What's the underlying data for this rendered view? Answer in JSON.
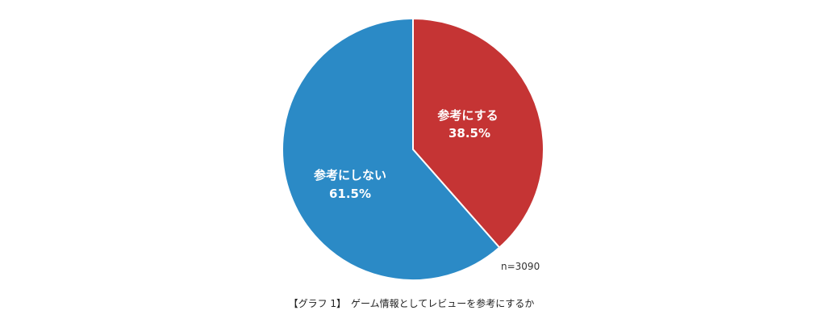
{
  "chart_data": {
    "type": "pie",
    "title": "",
    "slices": [
      {
        "label": "参考にする",
        "value": 38.5,
        "value_label": "38.5%",
        "color": "#c53434"
      },
      {
        "label": "参考にしない",
        "value": 61.5,
        "value_label": "61.5%",
        "color": "#2b8ac6"
      }
    ],
    "start": "top",
    "direction": "clockwise",
    "note": "n=3090",
    "caption": "【グラフ 1】　ゲーム情報としてレビューを参考にするか"
  }
}
